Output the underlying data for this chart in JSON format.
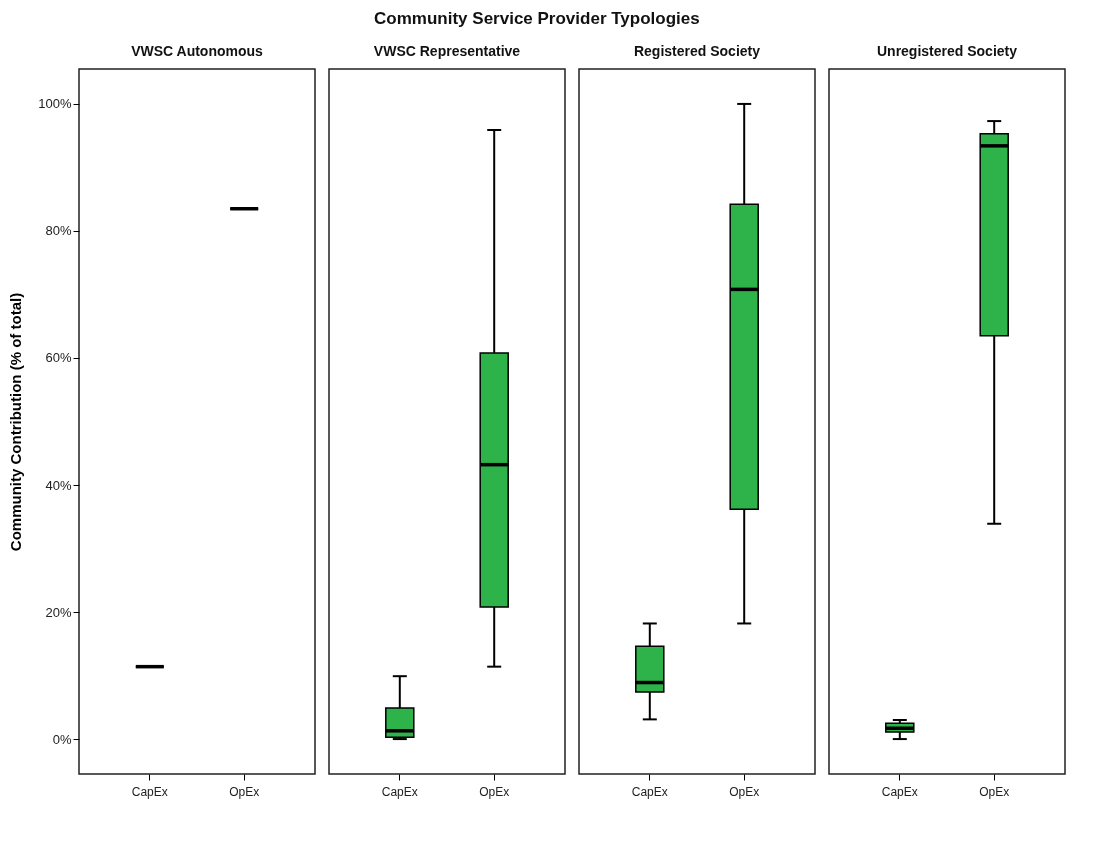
{
  "chart_data": [
    {
      "type": "box",
      "annotations": [
        "Community Service Provider Typologies"
      ],
      "subtitle": "VWSC Autonomous",
      "ylabel": "Community Contribution (% of total)",
      "categories": [
        "CapEx",
        "OpEx"
      ],
      "ylim": [
        -5.5,
        105.5
      ],
      "yticks": [
        {
          "value": 0,
          "label": "0%"
        },
        {
          "value": 20,
          "label": "20%"
        },
        {
          "value": 40,
          "label": "40%"
        },
        {
          "value": 60,
          "label": "60%"
        },
        {
          "value": 80,
          "label": "80%"
        },
        {
          "value": 100,
          "label": "100%"
        }
      ],
      "grid": false,
      "series": [
        {
          "color": "#000000",
          "boxes": [
            {
              "low": 11.4,
              "q1": 11.4,
              "median": 11.4,
              "q3": 11.4,
              "high": 11.4
            },
            {
              "low": 83.5,
              "q1": 83.5,
              "median": 83.5,
              "q3": 83.5,
              "high": 83.5
            }
          ]
        }
      ]
    },
    {
      "type": "box",
      "subtitle": "VWSC Representative",
      "categories": [
        "CapEx",
        "OpEx"
      ],
      "ylim": [
        -5.5,
        105.5
      ],
      "tick_labels": "x",
      "grid": false,
      "series": [
        {
          "color": "#2db34a",
          "boxes": [
            {
              "low": 0,
              "q1": 0.3,
              "median": 1.3,
              "q3": 4.9,
              "high": 9.9
            },
            {
              "low": 11.4,
              "q1": 20.8,
              "median": 43.2,
              "q3": 60.8,
              "high": 95.9
            }
          ]
        }
      ]
    },
    {
      "type": "box",
      "subtitle": "Registered Society",
      "categories": [
        "CapEx",
        "OpEx"
      ],
      "ylim": [
        -5.5,
        105.5
      ],
      "tick_labels": "x",
      "grid": false,
      "series": [
        {
          "color": "#2db34a",
          "boxes": [
            {
              "low": 3.1,
              "q1": 7.4,
              "median": 8.9,
              "q3": 14.6,
              "high": 18.2
            },
            {
              "low": 18.2,
              "q1": 36.2,
              "median": 70.8,
              "q3": 84.2,
              "high": 100
            }
          ]
        }
      ]
    },
    {
      "type": "box",
      "subtitle": "Unregistered Society",
      "categories": [
        "CapEx",
        "OpEx"
      ],
      "ylim": [
        -5.5,
        105.5
      ],
      "tick_labels": "x",
      "grid": false,
      "series": [
        {
          "color": "#2db34a",
          "boxes": [
            {
              "low": 0,
              "q1": 1.1,
              "median": 1.7,
              "q3": 2.5,
              "high": 3.0
            },
            {
              "low": 33.9,
              "q1": 63.5,
              "median": 93.4,
              "q3": 95.3,
              "high": 97.3
            }
          ]
        }
      ]
    }
  ]
}
